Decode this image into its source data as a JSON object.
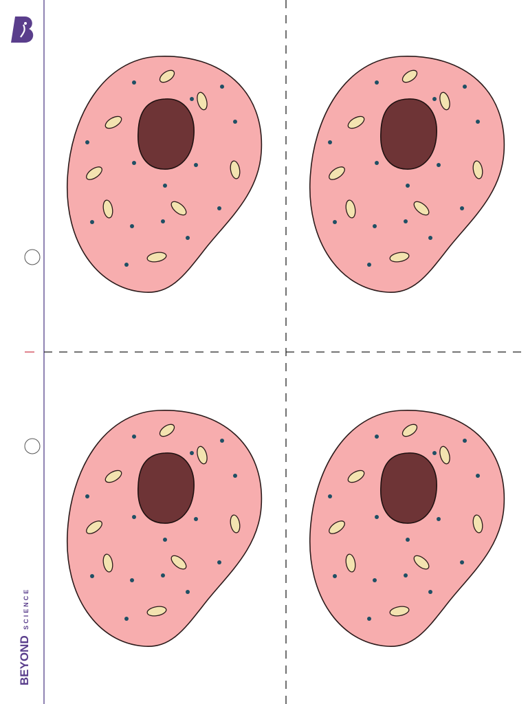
{
  "brand": {
    "name": "BEYOND",
    "tagline": "SCIENCE"
  }
}
